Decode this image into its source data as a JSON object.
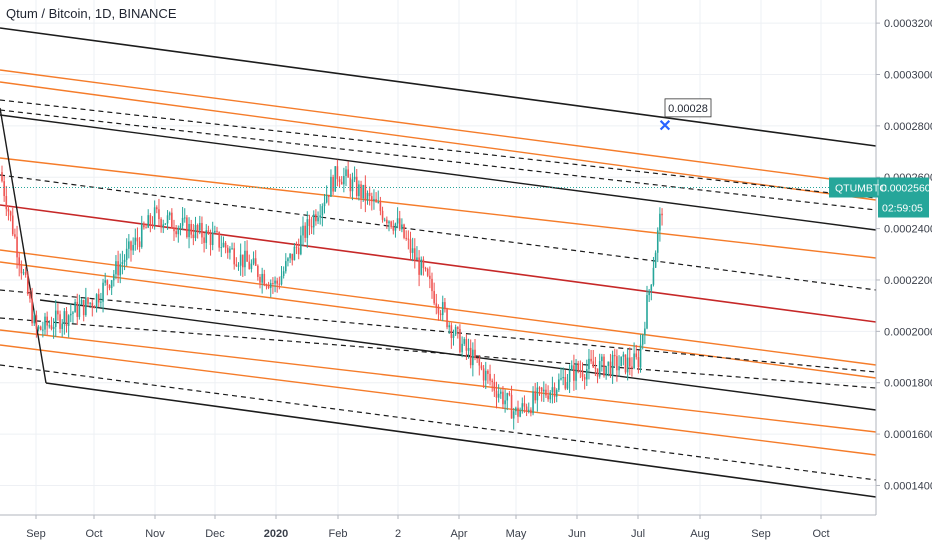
{
  "title": "Qtum / Bitcoin, 1D, BINANCE",
  "chart_data": {
    "type": "candlestick",
    "title": "Qtum / Bitcoin, 1D, BINANCE",
    "x_ticks": [
      "Sep",
      "Oct",
      "Nov",
      "Dec",
      "2020",
      "Feb",
      "2",
      "Apr",
      "May",
      "Jun",
      "Jul",
      "Aug",
      "Sep",
      "Oct"
    ],
    "y_ticks": [
      "0.0003200",
      "0.0003000",
      "0.0002800",
      "0.0002600",
      "0.0002400",
      "0.0002200",
      "0.0002000",
      "0.0001800",
      "0.0001600",
      "0.0001400"
    ],
    "ylim": [
      0.0001285,
      0.000329
    ],
    "grid": true,
    "price_series": [
      {
        "t": "Aug",
        "close": 0.000262
      },
      {
        "t": "Sep",
        "close": 0.0002
      },
      {
        "t": "Oct",
        "close": 0.000212
      },
      {
        "t": "Nov",
        "close": 0.000245
      },
      {
        "t": "Dec",
        "close": 0.000236
      },
      {
        "t": "2020",
        "close": 0.000218
      },
      {
        "t": "Feb",
        "close": 0.000262
      },
      {
        "t": "2",
        "close": 0.000241
      },
      {
        "t": "Apr",
        "close": 0.000196
      },
      {
        "t": "May",
        "close": 0.000168
      },
      {
        "t": "Jun",
        "close": 0.000185
      },
      {
        "t": "Jul",
        "close": 0.000188
      },
      {
        "t": "Jul",
        "close": 0.000256
      }
    ],
    "annotations": [
      {
        "type": "label",
        "text": "0.00028",
        "value": 0.00028
      },
      {
        "type": "price_tag",
        "text": "QTUMBTC",
        "value": "0.0002560"
      },
      {
        "type": "countdown",
        "text": "02:59:05"
      }
    ]
  },
  "colors": {
    "up_candle": "#26a69a",
    "down_candle": "#ef5350",
    "channel_black": "#1c1c1c",
    "channel_orange": "#f57c2a",
    "channel_red": "#c62828",
    "price_tag": "#26a69a",
    "marker": "#2962ff"
  }
}
